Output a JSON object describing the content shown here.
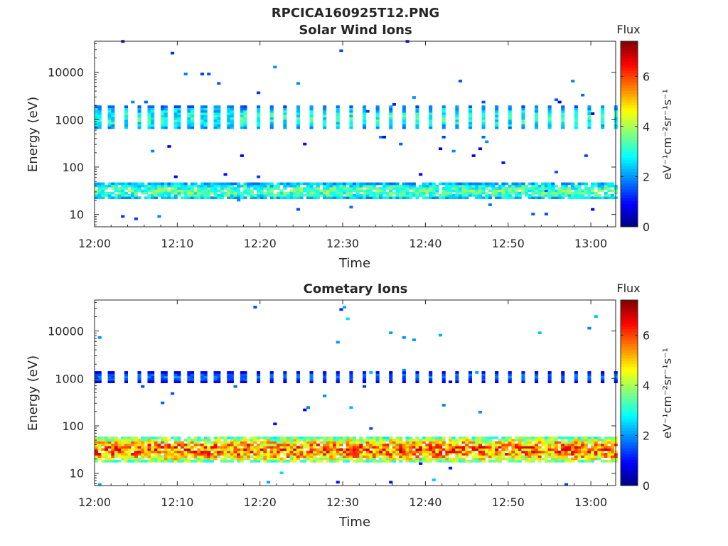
{
  "figure_title": "RPCICA160925T12.PNG",
  "chart_data": [
    {
      "type": "heatmap",
      "title": "Solar Wind Ions",
      "xlabel": "Time",
      "ylabel": "Energy (eV)",
      "x_ticks": [
        "12:00",
        "12:10",
        "12:20",
        "12:30",
        "12:40",
        "12:50",
        "13:00"
      ],
      "x_range_minutes": [
        0,
        63
      ],
      "y_ticks": [
        "10",
        "100",
        "1000",
        "10000"
      ],
      "y_tick_values": [
        10,
        100,
        1000,
        10000
      ],
      "y_scale": "log",
      "y_range": [
        5.5,
        45000
      ],
      "colorbar": {
        "title": "Flux",
        "label": "eV⁻¹cm⁻²sr⁻¹s⁻¹",
        "ticks": [
          "0",
          "2",
          "4",
          "6"
        ],
        "range": [
          0,
          7.4
        ],
        "colormap": "jet"
      },
      "bands": [
        {
          "e_min": 650,
          "e_max": 1800,
          "level": 3.0,
          "note": "bursts every ~1.6 min"
        },
        {
          "e_min": 22,
          "e_max": 45,
          "level": 3.4,
          "note": "continuous"
        }
      ],
      "sparse_noise_level": 1.0
    },
    {
      "type": "heatmap",
      "title": "Cometary Ions",
      "xlabel": "Time",
      "ylabel": "Energy (eV)",
      "x_ticks": [
        "12:00",
        "12:10",
        "12:20",
        "12:30",
        "12:40",
        "12:50",
        "13:00"
      ],
      "x_range_minutes": [
        0,
        63
      ],
      "y_ticks": [
        "10",
        "100",
        "1000",
        "10000"
      ],
      "y_tick_values": [
        10,
        100,
        1000,
        10000
      ],
      "y_scale": "log",
      "y_range": [
        5.5,
        45000
      ],
      "colorbar": {
        "title": "Flux",
        "label": "eV⁻¹cm⁻²sr⁻¹s⁻¹",
        "ticks": [
          "0",
          "2",
          "4",
          "6"
        ],
        "range": [
          0,
          7.4
        ],
        "colormap": "jet"
      },
      "bands": [
        {
          "e_min": 900,
          "e_max": 1300,
          "level": 1.7,
          "note": "bursts every ~1.6 min"
        },
        {
          "e_min": 18,
          "e_max": 55,
          "level": 5.6,
          "note": "continuous, peak ~30 eV"
        }
      ],
      "sparse_noise_level": 1.3
    }
  ]
}
